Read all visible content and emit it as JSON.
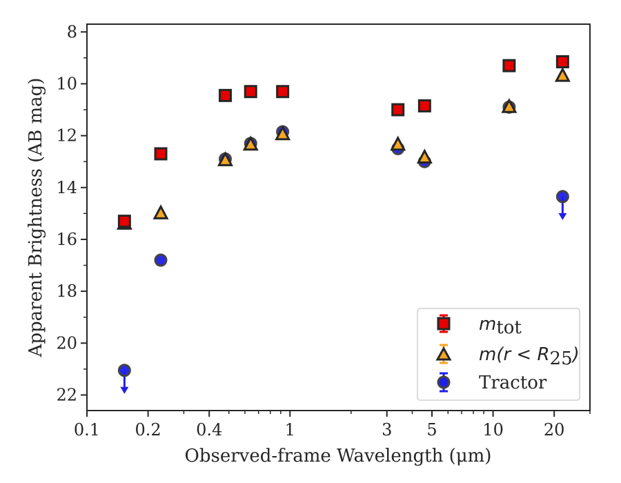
{
  "chart_data": {
    "type": "scatter",
    "xlabel": "Observed-frame Wavelength (μm)",
    "ylabel": "Apparent Brightness (AB mag)",
    "x_scale": "log",
    "xlim": [
      0.1,
      30
    ],
    "ylim": [
      22.6,
      7.7
    ],
    "y_inverted": true,
    "x_ticks": [
      {
        "value": 0.1,
        "label": "0.1"
      },
      {
        "value": 0.2,
        "label": "0.2"
      },
      {
        "value": 0.4,
        "label": "0.4"
      },
      {
        "value": 1,
        "label": "1"
      },
      {
        "value": 3,
        "label": "3"
      },
      {
        "value": 5,
        "label": "5"
      },
      {
        "value": 10,
        "label": "10"
      },
      {
        "value": 20,
        "label": "20"
      }
    ],
    "y_ticks": [
      8,
      10,
      12,
      14,
      16,
      18,
      20,
      22
    ],
    "grid": false,
    "legend_position": "bottom-right",
    "series": [
      {
        "name": "m_tot",
        "marker": "square",
        "color": "#e60000",
        "edge": "#262626",
        "x": [
          0.153,
          0.231,
          0.48,
          0.64,
          0.92,
          3.4,
          4.6,
          12.0,
          22.0
        ],
        "y": [
          15.3,
          12.7,
          10.45,
          10.3,
          10.3,
          11.0,
          10.85,
          9.3,
          9.15
        ],
        "upper_limit": [
          false,
          false,
          false,
          false,
          false,
          false,
          false,
          false,
          false
        ]
      },
      {
        "name": "m(r < R25)",
        "marker": "triangle",
        "color": "#f5a623",
        "edge": "#262626",
        "x": [
          0.153,
          0.231,
          0.48,
          0.64,
          0.92,
          3.4,
          4.6,
          12.0,
          22.0
        ],
        "y": [
          15.4,
          15.0,
          12.95,
          12.35,
          11.95,
          12.35,
          12.85,
          10.9,
          9.7
        ],
        "upper_limit": [
          false,
          false,
          false,
          false,
          false,
          false,
          false,
          false,
          false
        ]
      },
      {
        "name": "Tractor",
        "marker": "circle",
        "color": "#1f1fe6",
        "edge": "#444444",
        "x": [
          0.153,
          0.231,
          0.48,
          0.64,
          0.92,
          3.4,
          4.6,
          12.0,
          22.0
        ],
        "y": [
          21.05,
          16.8,
          12.9,
          12.3,
          11.85,
          12.5,
          13.0,
          10.9,
          14.35
        ],
        "upper_limit": [
          true,
          false,
          false,
          false,
          false,
          false,
          false,
          false,
          true
        ]
      }
    ]
  },
  "legend": {
    "m_tot_base": "m",
    "m_tot_sub": "tot",
    "m_r_part1": "m(r < R",
    "m_r_sub": "25",
    "m_r_part2": ")",
    "tractor": "Tractor"
  }
}
